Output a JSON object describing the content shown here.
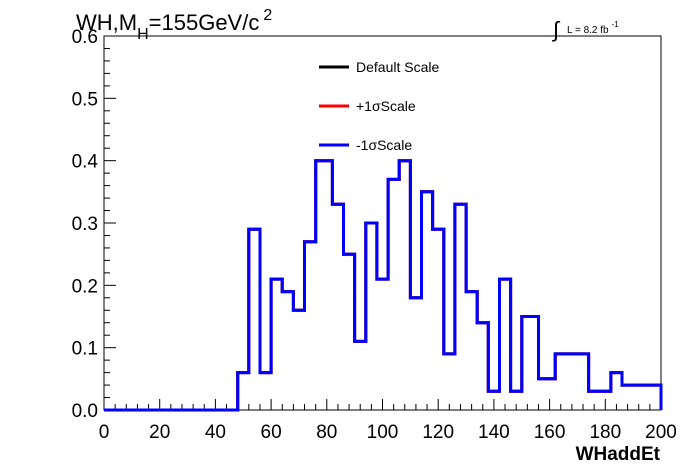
{
  "title": {
    "prefix": "WH,M",
    "subscript": "H",
    "main": "=155GeV/c",
    "superscript": "2"
  },
  "lumi": {
    "integral_symbol": "∫",
    "text": "L = 8.2 fb",
    "superscript": "-1"
  },
  "chart_data": {
    "type": "line",
    "step": true,
    "xlabel": "WHaddEt",
    "ylabel": "",
    "xlim": [
      0,
      200
    ],
    "ylim": [
      0,
      0.6
    ],
    "x_ticks": [
      "0",
      "20",
      "40",
      "60",
      "80",
      "100",
      "120",
      "140",
      "160",
      "180",
      "200"
    ],
    "y_ticks": [
      "0.0",
      "0.1",
      "0.2",
      "0.3",
      "0.4",
      "0.5",
      "0.6"
    ],
    "grid": false,
    "legend_position": "top-center",
    "bin_edges": [
      0,
      48,
      52,
      56,
      60,
      64,
      68,
      72,
      76,
      78,
      82,
      86,
      90,
      94,
      98,
      102,
      106,
      110,
      114,
      118,
      122,
      126,
      130,
      134,
      138,
      142,
      146,
      150,
      156,
      162,
      174,
      178,
      182,
      186,
      200
    ],
    "series": [
      {
        "name": "Default Scale",
        "color": "#000000",
        "values": [
          0,
          0.06,
          0.29,
          0.06,
          0.21,
          0.19,
          0.16,
          0.27,
          0.4,
          0.4,
          0.33,
          0.25,
          0.11,
          0.3,
          0.21,
          0.37,
          0.4,
          0.18,
          0.35,
          0.29,
          0.09,
          0.33,
          0.19,
          0.14,
          0.03,
          0.21,
          0.03,
          0.15,
          0.05,
          0.09,
          0.03,
          0.03,
          0.06,
          0.04,
          0
        ]
      },
      {
        "name": "+1σScale",
        "color": "#ff0000",
        "values": [
          0,
          0.06,
          0.29,
          0.06,
          0.21,
          0.19,
          0.16,
          0.27,
          0.4,
          0.4,
          0.33,
          0.25,
          0.11,
          0.3,
          0.21,
          0.37,
          0.4,
          0.18,
          0.35,
          0.29,
          0.09,
          0.33,
          0.19,
          0.14,
          0.03,
          0.21,
          0.03,
          0.15,
          0.05,
          0.09,
          0.03,
          0.03,
          0.06,
          0.04,
          0
        ]
      },
      {
        "name": "-1σScale",
        "color": "#0000ff",
        "values": [
          0,
          0.06,
          0.29,
          0.06,
          0.21,
          0.19,
          0.16,
          0.27,
          0.4,
          0.4,
          0.33,
          0.25,
          0.11,
          0.3,
          0.21,
          0.37,
          0.4,
          0.18,
          0.35,
          0.29,
          0.09,
          0.33,
          0.19,
          0.14,
          0.03,
          0.21,
          0.03,
          0.15,
          0.05,
          0.09,
          0.03,
          0.03,
          0.06,
          0.04,
          0
        ]
      }
    ]
  }
}
